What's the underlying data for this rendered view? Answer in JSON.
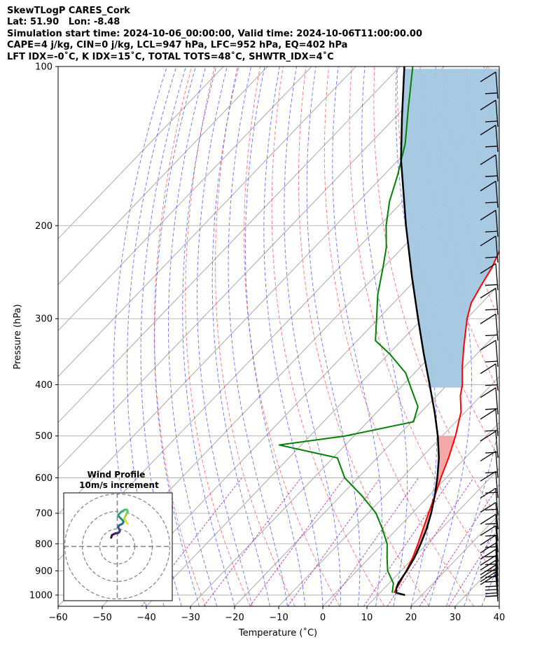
{
  "title_lines": [
    "SkewTLogP CARES_Cork",
    "Lat: 51.90   Lon: -8.48",
    "Simulation start time: 2024-10-06_00:00:00, Valid time: 2024-10-06T11:00:00.00",
    "CAPE=4 j/kg, CIN=0 j/kg, LCL=947 hPa, LFC=952 hPa, EQ=402 hPa",
    "LFT IDX=-0˚C, K IDX=15˚C, TOTAL TOTS=48˚C, SHWTR_IDX=4˚C"
  ],
  "chart_data": {
    "type": "line",
    "subtype": "skew-t log-p",
    "xlabel": "Temperature (˚C)",
    "ylabel": "Pressure (hPa)",
    "xlim": [
      -60,
      40
    ],
    "ylim": [
      1050,
      100
    ],
    "y_scale": "log",
    "x_ticks": [
      "−60",
      "−50",
      "−40",
      "−30",
      "−20",
      "−10",
      "0",
      "10",
      "20",
      "30",
      "40"
    ],
    "x_tick_values": [
      -60,
      -50,
      -40,
      -30,
      -20,
      -10,
      0,
      10,
      20,
      30,
      40
    ],
    "y_ticks": [
      "1000",
      "900",
      "800",
      "700",
      "600",
      "500",
      "400",
      "300",
      "200",
      "100"
    ],
    "y_tick_values": [
      1000,
      900,
      800,
      700,
      600,
      500,
      400,
      300,
      200,
      100
    ],
    "grid": true,
    "colors": {
      "temperature": "#ff0000",
      "dewpoint": "#008000",
      "parcel": "#000000",
      "cape_fill": "#f4a3a3",
      "cin_fill": "#a3c6e0",
      "dry_adiabat": "#ff4444",
      "moist_adiabat": "#3344ff",
      "mixing_ratio": "#aa00aa",
      "isotherm": "#a0a0a0"
    },
    "series": [
      {
        "kind": "temperature",
        "pressure": [
          990,
          950,
          900,
          850,
          800,
          750,
          700,
          650,
          600,
          550,
          500,
          450,
          420,
          400,
          370,
          340,
          300,
          280,
          260,
          240,
          220,
          200,
          185,
          170,
          150,
          130,
          115,
          100
        ],
        "values": [
          13.2,
          12.4,
          11.2,
          9.8,
          8.0,
          5.9,
          3.7,
          1.4,
          -1.2,
          -3.8,
          -7.0,
          -11.0,
          -14.6,
          -16.6,
          -20.5,
          -24.4,
          -29.9,
          -32.4,
          -33.9,
          -35.4,
          -37.7,
          -39.7,
          -43.1,
          -46.8,
          -51.2,
          -54.8,
          -57.7,
          -60.1
        ]
      },
      {
        "kind": "dewpoint",
        "pressure": [
          990,
          950,
          900,
          850,
          800,
          750,
          700,
          650,
          600,
          550,
          520,
          500,
          470,
          440,
          410,
          380,
          350,
          330,
          300,
          270,
          240,
          220,
          200,
          180,
          160,
          140,
          120,
          100
        ],
        "values": [
          12.8,
          11.0,
          7.0,
          4.0,
          1.0,
          -3.3,
          -8.2,
          -15.0,
          -23.0,
          -29.0,
          -45.0,
          -32.0,
          -19.6,
          -21.9,
          -26.8,
          -32.0,
          -39.7,
          -45.9,
          -50.4,
          -55.4,
          -60.1,
          -63.7,
          -68.5,
          -73.0,
          -77.0,
          -82.0,
          -89.0,
          -97.1
        ]
      },
      {
        "kind": "parcel",
        "pressure": [
          1000,
          990,
          970,
          950,
          900,
          850,
          800,
          750,
          700,
          650,
          600,
          550,
          500,
          450,
          400,
          350,
          300,
          250,
          200,
          150,
          125,
          100
        ],
        "values": [
          16.2,
          13.7,
          12.7,
          12.1,
          11.3,
          10.2,
          8.6,
          6.7,
          4.3,
          1.4,
          -2.0,
          -6.0,
          -11.0,
          -17.0,
          -24.0,
          -32.0,
          -41.0,
          -51.5,
          -64.0,
          -79.5,
          -88.4,
          -99.0
        ]
      }
    ],
    "wind_barbs_pressure": [
      1028,
      1015,
      1000,
      985,
      965,
      945,
      920,
      895,
      865,
      830,
      790,
      750,
      705,
      655,
      600,
      550,
      500,
      455,
      410,
      370,
      330,
      295,
      265,
      235,
      210,
      185,
      165,
      145,
      130,
      115
    ],
    "hodograph": {
      "title": "Wind Profile",
      "subtitle": "10m/s increment",
      "rings": 3,
      "points_u": [
        -3.5,
        -3.0,
        -2.0,
        -1.0,
        0.0,
        1.0,
        1.5,
        1.0,
        0.5,
        1.0,
        2.0,
        3.0,
        3.5,
        3.0,
        2.0,
        1.0,
        0.5,
        1.5,
        2.5,
        3.5,
        4.5,
        5.5,
        6.0,
        5.5,
        5.0,
        4.5,
        4.0,
        4.5,
        5.0,
        6.0
      ],
      "points_v": [
        5.0,
        6.5,
        7.0,
        7.5,
        7.5,
        8.0,
        9.0,
        10.0,
        11.0,
        12.0,
        12.5,
        13.0,
        14.0,
        15.0,
        16.0,
        17.0,
        18.0,
        19.0,
        20.0,
        20.5,
        21.0,
        21.0,
        20.0,
        19.0,
        18.0,
        17.0,
        16.0,
        15.0,
        14.0,
        13.0
      ]
    }
  }
}
